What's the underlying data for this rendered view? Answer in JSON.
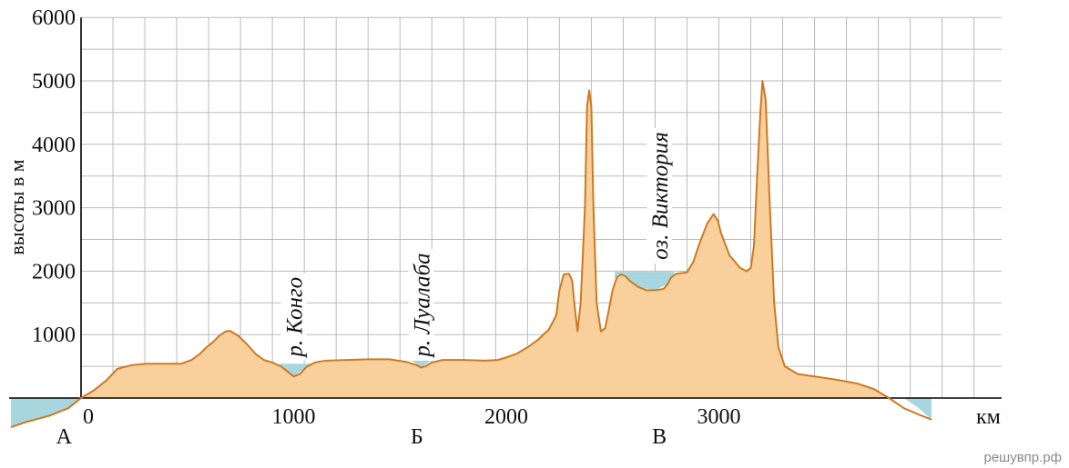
{
  "chart_data": {
    "type": "area",
    "ylabel": "высоты в м",
    "x_unit": "км",
    "xlim": [
      0,
      4200
    ],
    "ylim": [
      0,
      6000
    ],
    "x_ticks": [
      0,
      1000,
      2000,
      3000
    ],
    "y_ticks": [
      1000,
      2000,
      3000,
      4000,
      5000,
      6000
    ],
    "grid": true,
    "colors": {
      "land": "#f9cf9c",
      "outline": "#cc7a22",
      "water": "#a8d6df",
      "grid": "#bbbbbb"
    },
    "profile": {
      "x": [
        -330,
        -260,
        -150,
        -60,
        0,
        60,
        120,
        170,
        240,
        310,
        390,
        440,
        470,
        520,
        560,
        590,
        620,
        650,
        680,
        700,
        740,
        780,
        820,
        860,
        900,
        940,
        970,
        1000,
        1030,
        1060,
        1100,
        1150,
        1250,
        1350,
        1450,
        1530,
        1575,
        1600,
        1620,
        1650,
        1700,
        1800,
        1900,
        1960,
        2000,
        2050,
        2100,
        2150,
        2200,
        2235,
        2250,
        2270,
        2295,
        2310,
        2320,
        2335,
        2350,
        2370,
        2380,
        2390,
        2400,
        2410,
        2425,
        2445,
        2465,
        2480,
        2500,
        2520,
        2540,
        2560,
        2580,
        2620,
        2660,
        2700,
        2740,
        2760,
        2775,
        2800,
        2850,
        2880,
        2910,
        2945,
        2975,
        2995,
        3010,
        3050,
        3100,
        3130,
        3150,
        3165,
        3180,
        3195,
        3205,
        3220,
        3240,
        3260,
        3280,
        3310,
        3370,
        3450,
        3550,
        3650,
        3730,
        3800,
        3870,
        3940,
        4000
      ],
      "y": [
        -460,
        -380,
        -280,
        -160,
        0,
        120,
        280,
        460,
        520,
        540,
        540,
        540,
        540,
        600,
        700,
        800,
        880,
        980,
        1050,
        1060,
        980,
        850,
        700,
        600,
        560,
        500,
        420,
        340,
        380,
        490,
        560,
        590,
        600,
        610,
        610,
        570,
        520,
        480,
        500,
        560,
        600,
        600,
        590,
        600,
        640,
        700,
        800,
        920,
        1080,
        1300,
        1700,
        1950,
        1960,
        1850,
        1500,
        1050,
        1500,
        3000,
        4600,
        4850,
        4600,
        3000,
        1500,
        1050,
        1100,
        1350,
        1700,
        1900,
        1950,
        1920,
        1850,
        1750,
        1700,
        1700,
        1720,
        1800,
        1900,
        1960,
        1980,
        2150,
        2450,
        2750,
        2900,
        2800,
        2600,
        2250,
        2050,
        2000,
        2050,
        2400,
        3500,
        4500,
        5000,
        4700,
        3000,
        1500,
        800,
        500,
        380,
        340,
        290,
        230,
        140,
        0,
        -160,
        -260,
        -340
      ]
    },
    "water": [
      {
        "x": [
          -330,
          -260,
          -150,
          -60,
          0
        ],
        "y": [
          -460,
          -380,
          -280,
          -160,
          0
        ],
        "level": 0
      },
      {
        "x": [
          930,
          1000,
          1080
        ],
        "y": [
          540,
          340,
          540
        ],
        "level": 540
      },
      {
        "x": [
          1555,
          1600,
          1645
        ],
        "y": [
          590,
          480,
          590
        ],
        "level": 590
      },
      {
        "x": [
          2510,
          2560,
          2620,
          2700,
          2760,
          2790
        ],
        "y": [
          1900,
          1920,
          1750,
          1700,
          1800,
          1960
        ],
        "level": 1990
      },
      {
        "x": [
          3870,
          3940,
          4000
        ],
        "y": [
          0,
          -160,
          -340
        ],
        "level": 0
      }
    ],
    "points": [
      {
        "label": "А",
        "x": -80
      },
      {
        "label": "Б",
        "x": 1580
      },
      {
        "label": "В",
        "x": 2720
      }
    ],
    "features": [
      {
        "label": "р. Конго",
        "x": 1000,
        "y_base": 650
      },
      {
        "label": "р. Луалаба",
        "x": 1600,
        "y_base": 650
      },
      {
        "label": "оз. Виктория",
        "x": 2720,
        "y_base": 2180
      }
    ]
  },
  "watermark": "решувпр.рф"
}
